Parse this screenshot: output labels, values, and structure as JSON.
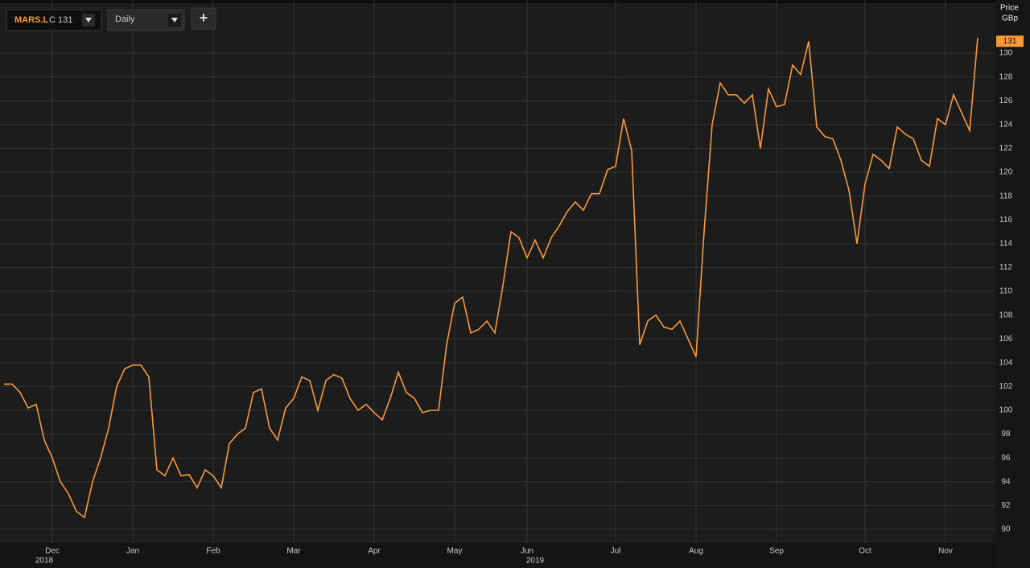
{
  "chart_data": {
    "type": "line",
    "ticker": "MARS.L",
    "close_label": "C 131",
    "interval": "Daily",
    "add_button": "+",
    "axis_title": "Price",
    "axis_unit": "GBp",
    "last_value_badge": 131,
    "categories": [
      null,
      null,
      null,
      null,
      null,
      null,
      "Dec",
      null,
      null,
      null,
      null,
      null,
      null,
      null,
      null,
      null,
      "Jan",
      null,
      null,
      null,
      null,
      null,
      null,
      null,
      null,
      null,
      "Feb",
      null,
      null,
      null,
      null,
      null,
      null,
      null,
      null,
      null,
      "Mar",
      null,
      null,
      null,
      null,
      null,
      null,
      null,
      null,
      null,
      "Apr",
      null,
      null,
      null,
      null,
      null,
      null,
      null,
      null,
      null,
      "May",
      null,
      null,
      null,
      null,
      null,
      null,
      null,
      null,
      "Jun",
      null,
      null,
      null,
      null,
      null,
      null,
      null,
      null,
      null,
      null,
      "Jul",
      null,
      null,
      null,
      null,
      null,
      null,
      null,
      null,
      null,
      "Aug",
      null,
      null,
      null,
      null,
      null,
      null,
      null,
      null,
      null,
      "Sep",
      null,
      null,
      null,
      null,
      null,
      null,
      null,
      null,
      null,
      null,
      "Oct",
      null,
      null,
      null,
      null,
      null,
      null,
      null,
      null,
      null,
      "Nov",
      null,
      null,
      null,
      null
    ],
    "year_labels": [
      null,
      null,
      null,
      null,
      null,
      "2018",
      null,
      null,
      null,
      null,
      null,
      null,
      null,
      null,
      null,
      null,
      null,
      null,
      null,
      null,
      null,
      null,
      null,
      null,
      null,
      null,
      null,
      null,
      null,
      null,
      null,
      null,
      null,
      null,
      null,
      null,
      null,
      null,
      null,
      null,
      null,
      null,
      null,
      null,
      null,
      null,
      null,
      null,
      null,
      null,
      null,
      null,
      null,
      null,
      null,
      null,
      null,
      null,
      null,
      null,
      null,
      null,
      null,
      null,
      null,
      null,
      "2019",
      null,
      null,
      null,
      null,
      null,
      null,
      null,
      null,
      null,
      null,
      null,
      null,
      null,
      null,
      null,
      null,
      null,
      null,
      null,
      null,
      null,
      null,
      null,
      null,
      null,
      null,
      null,
      null,
      null,
      null,
      null,
      null,
      null,
      null,
      null,
      null,
      null,
      null,
      null,
      null,
      null,
      null,
      null,
      null,
      null,
      null,
      null,
      null,
      null,
      null,
      null,
      null,
      null,
      null,
      null
    ],
    "series": [
      {
        "name": "MARS.L",
        "color": "#f7993b",
        "values": [
          102.2,
          102.2,
          101.5,
          100.2,
          100.5,
          97.5,
          96,
          94,
          93,
          91.5,
          91,
          94,
          96,
          98.5,
          102,
          103.5,
          103.8,
          103.8,
          102.8,
          95,
          94.5,
          96,
          94.5,
          94.6,
          93.5,
          95,
          94.5,
          93.5,
          97.2,
          98,
          98.5,
          101.5,
          101.8,
          98.5,
          97.5,
          100.2,
          101,
          102.8,
          102.5,
          100,
          102.5,
          103,
          102.7,
          101,
          100,
          100.5,
          99.8,
          99.2,
          101,
          103.2,
          101.5,
          101,
          99.8,
          100,
          100,
          105.5,
          109,
          109.5,
          106.5,
          106.8,
          107.5,
          106.5,
          110.5,
          115,
          114.5,
          112.8,
          114.3,
          112.8,
          114.5,
          115.5,
          116.7,
          117.5,
          116.8,
          118.2,
          118.2,
          120.2,
          120.5,
          124.5,
          121.8,
          105.5,
          107.5,
          108,
          107,
          106.8,
          107.5,
          106,
          104.5,
          115,
          124,
          127.5,
          126.5,
          126.5,
          125.8,
          126.5,
          122,
          127,
          125.5,
          125.7,
          129,
          128.2,
          131,
          123.8,
          123,
          122.8,
          121,
          118.5,
          114,
          119,
          121.5,
          121,
          120.3,
          123.8,
          123.2,
          122.8,
          121,
          120.5,
          124.5,
          124,
          126.5,
          125,
          123.5,
          131.3
        ]
      }
    ],
    "ylim": [
      88.85,
      132.1
    ],
    "yticks": [
      90,
      92,
      94,
      96,
      98,
      100,
      102,
      104,
      106,
      108,
      110,
      112,
      114,
      116,
      118,
      120,
      122,
      124,
      126,
      128,
      130
    ],
    "grid": true
  }
}
